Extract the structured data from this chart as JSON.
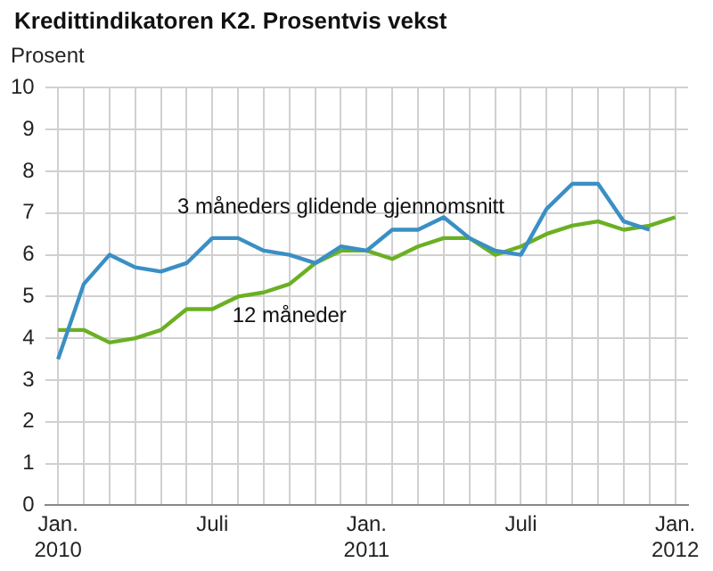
{
  "chart_data": {
    "type": "line",
    "title": "Kredittindikatoren K2. Prosentvis vekst",
    "ylabel": "Prosent",
    "categories": [
      "Jan.\n2010",
      null,
      null,
      null,
      null,
      null,
      "Juli",
      null,
      null,
      null,
      null,
      null,
      "Jan.\n2011",
      null,
      null,
      null,
      null,
      null,
      "Juli",
      null,
      null,
      null,
      null,
      null,
      "Jan.\n2012"
    ],
    "series": [
      {
        "name": "3 måneders glidende gjennomsnitt",
        "color": "#3a8fc4",
        "values": [
          3.5,
          5.3,
          6.0,
          5.7,
          5.6,
          5.8,
          6.4,
          6.4,
          6.1,
          6.0,
          5.8,
          6.2,
          6.1,
          6.6,
          6.6,
          6.9,
          6.4,
          6.1,
          6.0,
          7.1,
          7.7,
          7.7,
          6.8,
          6.6,
          null
        ]
      },
      {
        "name": "12 måneder",
        "color": "#6ab023",
        "values": [
          4.2,
          4.2,
          3.9,
          4.0,
          4.2,
          4.7,
          4.7,
          5.0,
          5.1,
          5.3,
          5.8,
          6.1,
          6.1,
          5.9,
          6.2,
          6.4,
          6.4,
          6.0,
          6.2,
          6.5,
          6.7,
          6.8,
          6.6,
          6.7,
          6.9
        ]
      }
    ],
    "ylim": [
      0,
      10
    ],
    "yticks": [
      0,
      1,
      2,
      3,
      4,
      5,
      6,
      7,
      8,
      9,
      10
    ],
    "grid": true,
    "legend": false,
    "marker": "none",
    "line_style": "solid"
  }
}
